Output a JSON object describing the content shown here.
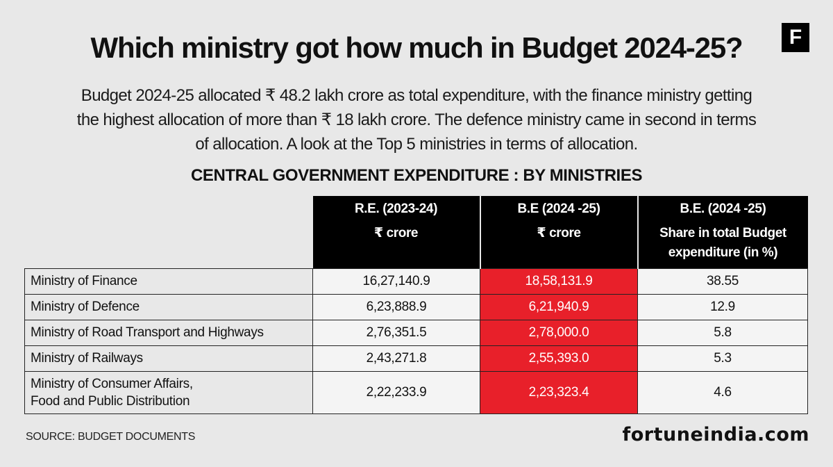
{
  "logo": "F",
  "title": "Which ministry got how much in Budget 2024-25?",
  "intro": "Budget 2024-25 allocated  ₹ 48.2 lakh crore as total expenditure, with the finance ministry getting the highest allocation of more than  ₹ 18 lakh crore. The defence ministry came in second in terms of allocation. A look at the Top 5 ministries in terms of allocation.",
  "chart_data": {
    "type": "table",
    "title": "CENTRAL GOVERNMENT EXPENDITURE : BY MINISTRIES",
    "columns": [
      {
        "header": "R.E. (2023-24)",
        "subheader": "₹ crore"
      },
      {
        "header": "B.E (2024 -25)",
        "subheader": "₹ crore"
      },
      {
        "header": "B.E. (2024 -25)",
        "subheader": "Share in total Budget expenditure (in %)"
      }
    ],
    "rows": [
      {
        "name": "Ministry of Finance",
        "re": "16,27,140.9",
        "be": "18,58,131.9",
        "share": "38.55"
      },
      {
        "name": "Ministry of Defence",
        "re": "6,23,888.9",
        "be": "6,21,940.9",
        "share": "12.9"
      },
      {
        "name": "Ministry of Road Transport and Highways",
        "re": "2,76,351.5",
        "be": "2,78,000.0",
        "share": "5.8"
      },
      {
        "name": "Ministry of Railways",
        "re": "2,43,271.8",
        "be": "2,55,393.0",
        "share": "5.3"
      },
      {
        "name": "Ministry of Consumer Affairs, Food and Public Distribution",
        "name_line1": "Ministry of Consumer Affairs,",
        "name_line2": "Food and Public Distribution",
        "re": "2,22,233.9",
        "be": "2,23,323.4",
        "share": "4.6"
      }
    ],
    "highlight_color": "#e8202a"
  },
  "source": "SOURCE: BUDGET DOCUMENTS",
  "site": "fortuneindia.com"
}
